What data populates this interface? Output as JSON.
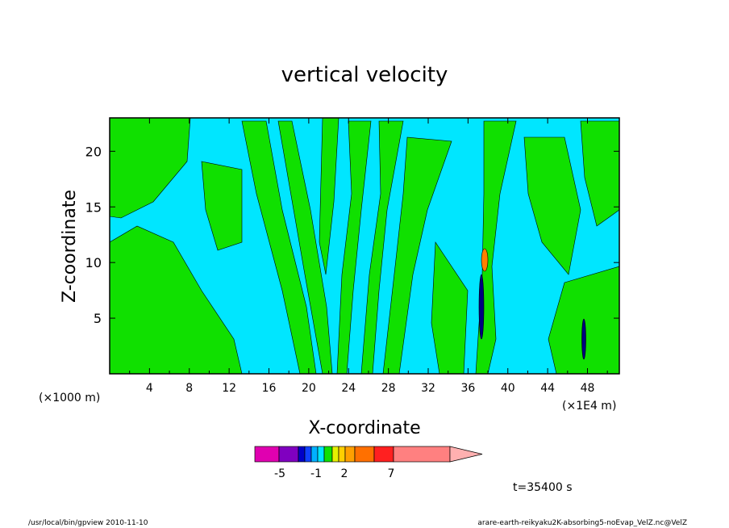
{
  "chart_data": {
    "type": "heatmap",
    "title": "vertical velocity",
    "xlabel": "X-coordinate",
    "ylabel": "Z-coordinate",
    "x_unit_left": "(×1000 m)",
    "x_unit_right": "(×1E4 m)",
    "xlim": [
      0,
      51.2
    ],
    "ylim": [
      0,
      23
    ],
    "x_ticks": [
      "4",
      "8",
      "12",
      "16",
      "20",
      "24",
      "28",
      "32",
      "36",
      "40",
      "44",
      "48"
    ],
    "y_ticks": [
      "5",
      "10",
      "15",
      "20"
    ],
    "colorbar": {
      "labels": [
        "-5",
        "-1",
        "2",
        "7"
      ],
      "colors": [
        "#e000b0",
        "#8000c0",
        "#0000c8",
        "#1040ff",
        "#00b0ff",
        "#00e6ff",
        "#10e000",
        "#e6f000",
        "#ffd000",
        "#ffa000",
        "#ff7000",
        "#ff2020",
        "#ff8080",
        "#ffb0b0"
      ]
    },
    "fill_colors": {
      "background": "#00e6ff",
      "positive": "#10e000",
      "strong_positive": "#ff8000",
      "strong_negative": "#000080"
    },
    "time_label": "t=35400 s"
  },
  "footer": {
    "left": "/usr/local/bin/gpview  2010-11-10",
    "right": "arare-earth-reikyaku2K-absorbing5-noEvap_VelZ.nc@VelZ"
  }
}
